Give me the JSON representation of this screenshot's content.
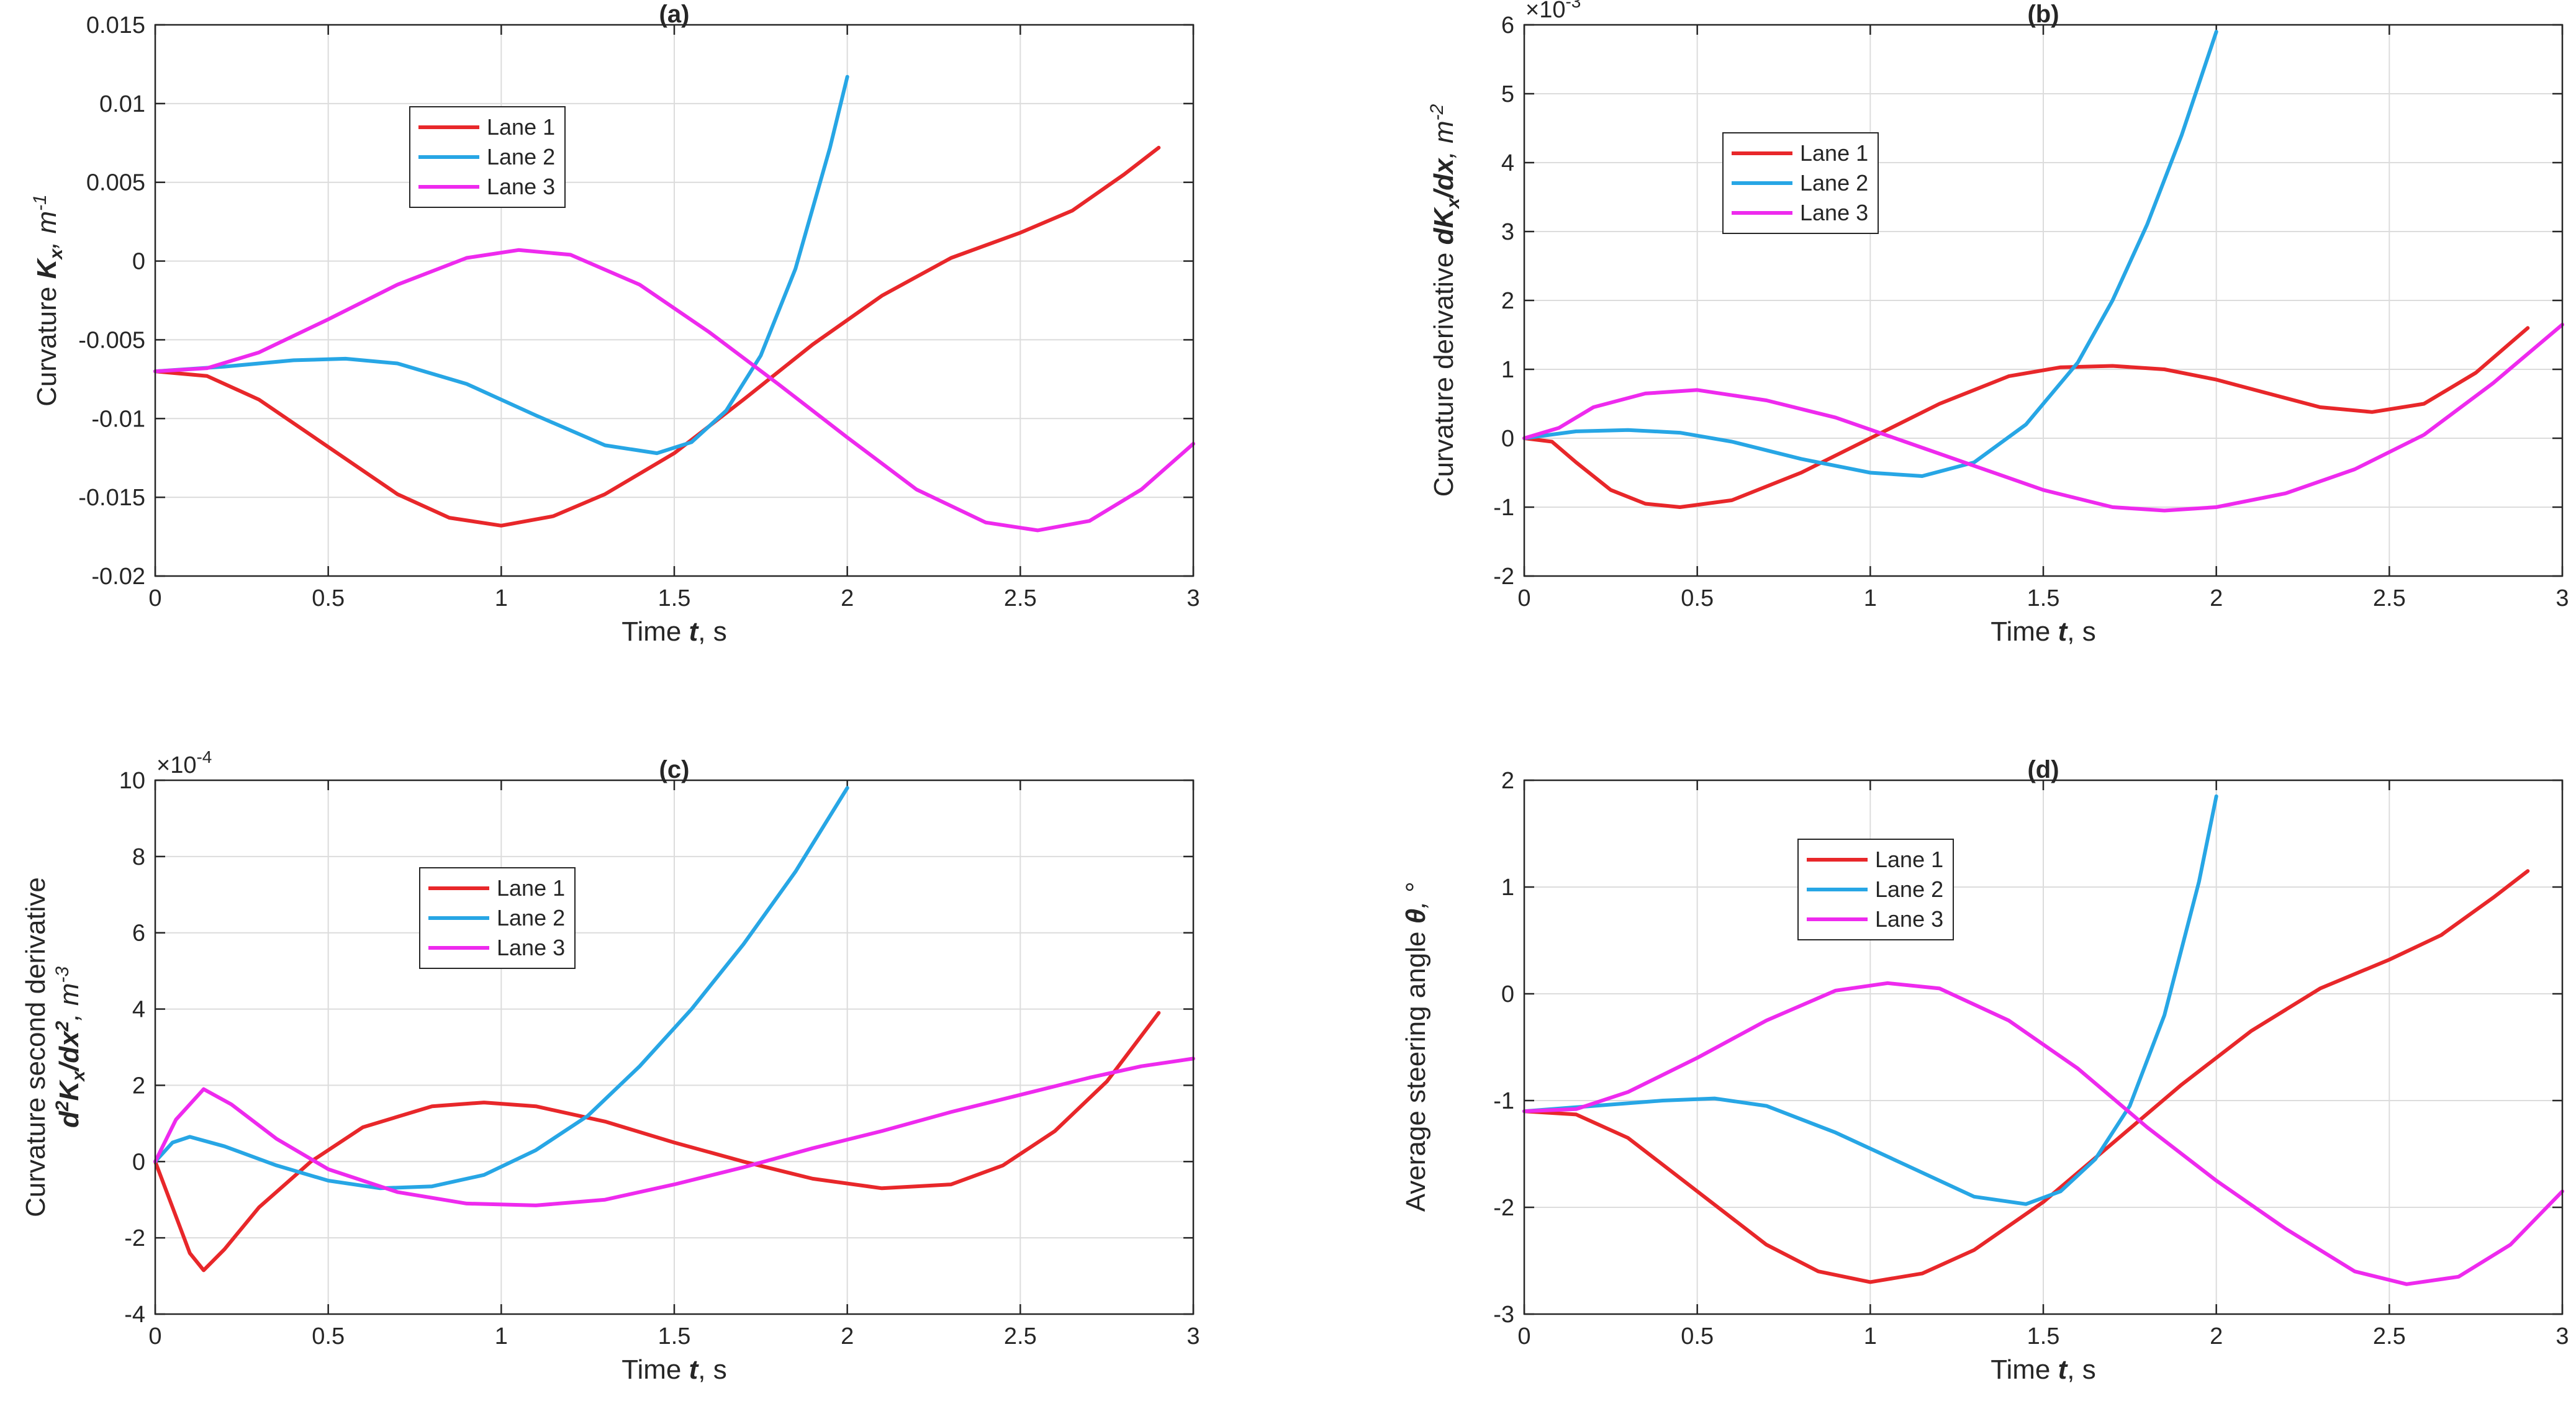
{
  "colors": {
    "lane1": "#e8272a",
    "lane2": "#27a6e5",
    "lane3": "#ee2aee",
    "axis": "#262626",
    "grid": "#dcdcdc"
  },
  "chart_data": [
    {
      "type": "line",
      "title": "(a)",
      "xlabel": "Time t, s",
      "ylabel": "Curvature Kx, m-1",
      "xlabel_parts": {
        "pre": "Time ",
        "var": "t",
        "post": ", s"
      },
      "ylabel_parts": {
        "pre": "Curvature ",
        "var": "K",
        "sub": "x",
        "post": ", m",
        "sup": "-1"
      },
      "exponent": "",
      "xlim": [
        0,
        3
      ],
      "ylim": [
        -0.02,
        0.015
      ],
      "xticks": [
        0,
        0.5,
        1,
        1.5,
        2,
        2.5,
        3
      ],
      "xtick_labels": [
        "0",
        "0.5",
        "1",
        "1.5",
        "2",
        "2.5",
        "3"
      ],
      "yticks": [
        -0.02,
        -0.015,
        -0.01,
        -0.005,
        0,
        0.005,
        0.01,
        0.015
      ],
      "ytick_labels": [
        "-0.02",
        "-0.015",
        "-0.01",
        "-0.005",
        "0",
        "0.005",
        "0.01",
        "0.015"
      ],
      "legend": {
        "location": "upper-left",
        "entries": [
          "Lane 1",
          "Lane 2",
          "Lane 3"
        ]
      },
      "series": [
        {
          "name": "Lane 1",
          "x": [
            0,
            0.15,
            0.3,
            0.5,
            0.7,
            0.85,
            1,
            1.15,
            1.3,
            1.5,
            1.7,
            1.9,
            2.1,
            2.3,
            2.5,
            2.65,
            2.8,
            2.9
          ],
          "y": [
            -0.007,
            -0.0073,
            -0.0088,
            -0.0118,
            -0.0148,
            -0.0163,
            -0.0168,
            -0.0162,
            -0.0148,
            -0.0122,
            -0.0088,
            -0.0053,
            -0.0022,
            0.0002,
            0.0018,
            0.0032,
            0.0055,
            0.0072
          ]
        },
        {
          "name": "Lane 2",
          "x": [
            0,
            0.2,
            0.4,
            0.55,
            0.7,
            0.9,
            1.1,
            1.3,
            1.45,
            1.55,
            1.65,
            1.75,
            1.85,
            1.95,
            2
          ],
          "y": [
            -0.007,
            -0.0067,
            -0.0063,
            -0.0062,
            -0.0065,
            -0.0078,
            -0.0098,
            -0.0117,
            -0.0122,
            -0.0115,
            -0.0095,
            -0.006,
            -0.0005,
            0.0072,
            0.0117
          ]
        },
        {
          "name": "Lane 3",
          "x": [
            0,
            0.15,
            0.3,
            0.5,
            0.7,
            0.9,
            1.05,
            1.2,
            1.4,
            1.6,
            1.8,
            2,
            2.2,
            2.4,
            2.55,
            2.7,
            2.85,
            3
          ],
          "y": [
            -0.007,
            -0.0068,
            -0.0058,
            -0.0037,
            -0.0015,
            0.0002,
            0.0007,
            0.0004,
            -0.0015,
            -0.0045,
            -0.0078,
            -0.0112,
            -0.0145,
            -0.0166,
            -0.0171,
            -0.0165,
            -0.0145,
            -0.0116
          ]
        }
      ]
    },
    {
      "type": "line",
      "title": "(b)",
      "xlabel": "Time t, s",
      "ylabel": "Curvature derivative dKx/dx, m-2",
      "xlabel_parts": {
        "pre": "Time ",
        "var": "t",
        "post": ", s"
      },
      "ylabel_parts": {
        "pre": "Curvature derivative ",
        "var": "dK",
        "sub": "x",
        "var2": "/dx",
        "post": ", m",
        "sup": "-2"
      },
      "exponent": "×10-3",
      "exponent_parts": {
        "base": "×10",
        "sup": "-3"
      },
      "xlim": [
        0,
        3
      ],
      "ylim": [
        -2,
        6
      ],
      "xticks": [
        0,
        0.5,
        1,
        1.5,
        2,
        2.5,
        3
      ],
      "xtick_labels": [
        "0",
        "0.5",
        "1",
        "1.5",
        "2",
        "2.5",
        "3"
      ],
      "yticks": [
        -2,
        -1,
        0,
        1,
        2,
        3,
        4,
        5,
        6
      ],
      "ytick_labels": [
        "-2",
        "-1",
        "0",
        "1",
        "2",
        "3",
        "4",
        "5",
        "6"
      ],
      "legend": {
        "location": "upper-left",
        "entries": [
          "Lane 1",
          "Lane 2",
          "Lane 3"
        ]
      },
      "series": [
        {
          "name": "Lane 1",
          "x": [
            0,
            0.08,
            0.15,
            0.25,
            0.35,
            0.45,
            0.6,
            0.8,
            1,
            1.2,
            1.4,
            1.55,
            1.7,
            1.85,
            2,
            2.15,
            2.3,
            2.45,
            2.6,
            2.75,
            2.9
          ],
          "y": [
            0,
            -0.05,
            -0.35,
            -0.75,
            -0.95,
            -1.0,
            -0.9,
            -0.5,
            0,
            0.5,
            0.9,
            1.03,
            1.05,
            1.0,
            0.85,
            0.65,
            0.45,
            0.38,
            0.5,
            0.95,
            1.6
          ]
        },
        {
          "name": "Lane 2",
          "x": [
            0,
            0.15,
            0.3,
            0.45,
            0.6,
            0.8,
            1,
            1.15,
            1.3,
            1.45,
            1.6,
            1.7,
            1.8,
            1.9,
            2
          ],
          "y": [
            0,
            0.1,
            0.12,
            0.08,
            -0.05,
            -0.3,
            -0.5,
            -0.55,
            -0.35,
            0.2,
            1.1,
            2.0,
            3.1,
            4.4,
            5.9
          ]
        },
        {
          "name": "Lane 3",
          "x": [
            0,
            0.1,
            0.2,
            0.35,
            0.5,
            0.7,
            0.9,
            1.1,
            1.3,
            1.5,
            1.7,
            1.85,
            2,
            2.2,
            2.4,
            2.6,
            2.8,
            3
          ],
          "y": [
            0,
            0.15,
            0.45,
            0.65,
            0.7,
            0.55,
            0.3,
            -0.05,
            -0.4,
            -0.75,
            -1.0,
            -1.05,
            -1.0,
            -0.8,
            -0.45,
            0.05,
            0.8,
            1.65
          ]
        }
      ]
    },
    {
      "type": "line",
      "title": "(c)",
      "xlabel": "Time t, s",
      "ylabel": "Curvature second derivative d2Kx/dx2, m-3",
      "xlabel_parts": {
        "pre": "Time ",
        "var": "t",
        "post": ", s"
      },
      "ylabel_line1": "Curvature second derivative",
      "ylabel_parts": {
        "pre": "",
        "var": "d",
        "sup1": "2",
        "var2": "K",
        "sub": "x",
        "var3": "/dx",
        "sup2": "2",
        "post": ", m",
        "sup": "-3"
      },
      "exponent": "×10-4",
      "exponent_parts": {
        "base": "×10",
        "sup": "-4"
      },
      "xlim": [
        0,
        3
      ],
      "ylim": [
        -4,
        10
      ],
      "xticks": [
        0,
        0.5,
        1,
        1.5,
        2,
        2.5,
        3
      ],
      "xtick_labels": [
        "0",
        "0.5",
        "1",
        "1.5",
        "2",
        "2.5",
        "3"
      ],
      "yticks": [
        -4,
        -2,
        0,
        2,
        4,
        6,
        8,
        10
      ],
      "ytick_labels": [
        "-4",
        "-2",
        "0",
        "2",
        "4",
        "6",
        "8",
        "10"
      ],
      "legend": {
        "location": "upper-left",
        "entries": [
          "Lane 1",
          "Lane 2",
          "Lane 3"
        ]
      },
      "series": [
        {
          "name": "Lane 1",
          "x": [
            0,
            0.05,
            0.1,
            0.14,
            0.2,
            0.3,
            0.45,
            0.6,
            0.8,
            0.95,
            1.1,
            1.3,
            1.5,
            1.7,
            1.9,
            2.1,
            2.3,
            2.45,
            2.6,
            2.75,
            2.9
          ],
          "y": [
            0,
            -1.2,
            -2.4,
            -2.85,
            -2.3,
            -1.2,
            0,
            0.9,
            1.45,
            1.55,
            1.45,
            1.05,
            0.5,
            0,
            -0.45,
            -0.7,
            -0.6,
            -0.1,
            0.8,
            2.1,
            3.9
          ]
        },
        {
          "name": "Lane 2",
          "x": [
            0,
            0.05,
            0.1,
            0.2,
            0.35,
            0.5,
            0.65,
            0.8,
            0.95,
            1.1,
            1.25,
            1.4,
            1.55,
            1.7,
            1.85,
            2
          ],
          "y": [
            0,
            0.5,
            0.65,
            0.4,
            -0.1,
            -0.5,
            -0.7,
            -0.65,
            -0.35,
            0.3,
            1.2,
            2.5,
            4.0,
            5.7,
            7.6,
            9.8
          ]
        },
        {
          "name": "Lane 3",
          "x": [
            0,
            0.06,
            0.14,
            0.22,
            0.35,
            0.5,
            0.7,
            0.9,
            1.1,
            1.3,
            1.5,
            1.7,
            1.9,
            2.1,
            2.3,
            2.5,
            2.7,
            2.85,
            3
          ],
          "y": [
            0,
            1.1,
            1.9,
            1.5,
            0.6,
            -0.2,
            -0.8,
            -1.1,
            -1.15,
            -1.0,
            -0.6,
            -0.15,
            0.35,
            0.8,
            1.3,
            1.75,
            2.2,
            2.5,
            2.7
          ]
        }
      ]
    },
    {
      "type": "line",
      "title": "(d)",
      "xlabel": "Time t, s",
      "ylabel": "Average steering angle θ, °",
      "xlabel_parts": {
        "pre": "Time ",
        "var": "t",
        "post": ", s"
      },
      "ylabel_parts": {
        "pre": "Average steering angle ",
        "var": "θ",
        "post": ", °"
      },
      "exponent": "",
      "xlim": [
        0,
        3
      ],
      "ylim": [
        -3,
        2
      ],
      "xticks": [
        0,
        0.5,
        1,
        1.5,
        2,
        2.5,
        3
      ],
      "xtick_labels": [
        "0",
        "0.5",
        "1",
        "1.5",
        "2",
        "2.5",
        "3"
      ],
      "yticks": [
        -3,
        -2,
        -1,
        0,
        1,
        2
      ],
      "ytick_labels": [
        "-3",
        "-2",
        "-1",
        "0",
        "1",
        "2"
      ],
      "legend": {
        "location": "upper-left",
        "entries": [
          "Lane 1",
          "Lane 2",
          "Lane 3"
        ]
      },
      "series": [
        {
          "name": "Lane 1",
          "x": [
            0,
            0.15,
            0.3,
            0.5,
            0.7,
            0.85,
            1,
            1.15,
            1.3,
            1.5,
            1.7,
            1.9,
            2.1,
            2.3,
            2.5,
            2.65,
            2.8,
            2.9
          ],
          "y": [
            -1.1,
            -1.13,
            -1.35,
            -1.85,
            -2.35,
            -2.6,
            -2.7,
            -2.62,
            -2.4,
            -1.95,
            -1.4,
            -0.85,
            -0.35,
            0.05,
            0.32,
            0.55,
            0.9,
            1.15
          ]
        },
        {
          "name": "Lane 2",
          "x": [
            0,
            0.2,
            0.4,
            0.55,
            0.7,
            0.9,
            1.1,
            1.3,
            1.45,
            1.55,
            1.65,
            1.75,
            1.85,
            1.95,
            2
          ],
          "y": [
            -1.1,
            -1.05,
            -1.0,
            -0.98,
            -1.05,
            -1.3,
            -1.6,
            -1.9,
            -1.97,
            -1.85,
            -1.55,
            -1.05,
            -0.2,
            1.05,
            1.85
          ]
        },
        {
          "name": "Lane 3",
          "x": [
            0,
            0.15,
            0.3,
            0.5,
            0.7,
            0.9,
            1.05,
            1.2,
            1.4,
            1.6,
            1.8,
            2,
            2.2,
            2.4,
            2.55,
            2.7,
            2.85,
            3
          ],
          "y": [
            -1.1,
            -1.08,
            -0.92,
            -0.6,
            -0.25,
            0.03,
            0.1,
            0.05,
            -0.25,
            -0.7,
            -1.25,
            -1.75,
            -2.2,
            -2.6,
            -2.72,
            -2.65,
            -2.35,
            -1.85
          ]
        }
      ]
    }
  ]
}
